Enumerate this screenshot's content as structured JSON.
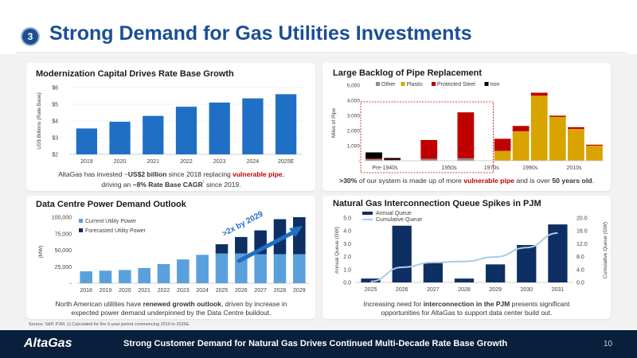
{
  "header": {
    "number": "3",
    "title": "Strong Demand for Gas Utilities Investments"
  },
  "panels": {
    "p1": {
      "title": "Modernization Capital Drives Rate Base Growth",
      "caption_a": "AltaGas has invested ~",
      "caption_b": "US$2 billion",
      "caption_c": " since 2018 replacing ",
      "caption_d": "vulnerable pipe",
      "caption_e": ",",
      "caption_f": "driving an ",
      "caption_g": "~8% Rate Base CAGR",
      "caption_h": "¹",
      "caption_i": " since 2019."
    },
    "p2": {
      "title": "Large Backlog of Pipe Replacement",
      "caption_a": ">30%",
      "caption_b": " of our system is made up of more ",
      "caption_c": "vulnerable pipe",
      "caption_d": " and is over ",
      "caption_e": "50 years old",
      "caption_f": "."
    },
    "p3": {
      "title": "Data Centre Power Demand Outlook",
      "arrow_label": ">2x by 2029",
      "caption_a": "North American utilities have ",
      "caption_b": "renewed growth outlook",
      "caption_c": ", driven by increase in",
      "caption_d": "expected power demand underpinned by the Data Centre buildout."
    },
    "p4": {
      "title": "Natural Gas Interconnection Queue Spikes in PJM",
      "caption_a": "Increasing need for ",
      "caption_b": "interconnection in the PJM",
      "caption_c": " presents significant",
      "caption_d": "opportunities for AltaGas to support data center build out."
    }
  },
  "source": "Source: S&P, PJM; 1) Calculated for the 6-year period commencing 2019 to 2025E.",
  "footer": {
    "logo": "AltaGas",
    "text": "Strong Customer Demand for Natural Gas Drives Continued Multi-Decade Rate Base Growth",
    "page": "10"
  },
  "colors": {
    "blue": "#1f6fc5",
    "navy": "#0d2f63",
    "light_blue": "#5aa0dc",
    "gold": "#d9a300",
    "red": "#c00000",
    "gray": "#8c8c8c",
    "black": "#000000",
    "cum_line": "#a9cbe8"
  },
  "chart_data": [
    {
      "type": "bar",
      "id": "rate_base",
      "categories": [
        "2019",
        "2020",
        "2021",
        "2022",
        "2023",
        "2024",
        "2025E"
      ],
      "values": [
        3.55,
        3.95,
        4.3,
        4.85,
        5.1,
        5.35,
        5.6
      ],
      "ylabel": "US$ Billions (Rate Base)",
      "ylim": [
        2,
        6
      ],
      "yticks": [
        "$2",
        "$3",
        "$4",
        "$5",
        "$6"
      ]
    },
    {
      "type": "bar",
      "id": "pipe_backlog",
      "stacked": true,
      "categories": [
        "1",
        "2",
        "3",
        "4",
        "5",
        "6",
        "7",
        "8",
        "9",
        "10",
        "11",
        "12",
        "13"
      ],
      "axis_labels": [
        "Pre-1940s",
        "1950s",
        "1970s",
        "1990s",
        "2010s"
      ],
      "series": [
        {
          "name": "Other",
          "values": [
            0,
            0,
            0,
            0,
            0,
            0,
            0,
            0,
            0,
            0,
            0,
            0,
            0
          ]
        },
        {
          "name": "Plastic",
          "values": [
            0,
            0,
            0,
            0,
            0,
            0,
            0,
            650,
            1950,
            4300,
            2900,
            2100,
            1000
          ]
        },
        {
          "name": "Protected Steel",
          "values": [
            50,
            30,
            0,
            1250,
            0,
            3050,
            0,
            800,
            350,
            200,
            80,
            120,
            60
          ]
        },
        {
          "name": "Iron",
          "values": [
            400,
            100,
            0,
            0,
            0,
            0,
            0,
            0,
            0,
            0,
            0,
            0,
            0
          ]
        }
      ],
      "gray_base": [
        100,
        50,
        0,
        120,
        0,
        150,
        0,
        0,
        0,
        0,
        0,
        0,
        0
      ],
      "ylabel": "Miles of Pipe",
      "ylim": [
        0,
        5000
      ],
      "yticks": [
        "-",
        "1,000",
        "2,000",
        "3,000",
        "4,000",
        "5,000"
      ],
      "legend": "top"
    },
    {
      "type": "bar",
      "id": "power_demand",
      "stacked": true,
      "categories": [
        "2018",
        "2019",
        "2020",
        "2021",
        "2022",
        "2023",
        "2024",
        "2025",
        "2026",
        "2027",
        "2028",
        "2029"
      ],
      "series": [
        {
          "name": "Current Utility Power",
          "values": [
            18000,
            19000,
            20000,
            23000,
            29000,
            36000,
            43000,
            45000,
            45000,
            44000,
            44000,
            44000
          ]
        },
        {
          "name": "Forecasted Utility Power",
          "values": [
            0,
            0,
            0,
            0,
            0,
            0,
            0,
            14000,
            25000,
            36000,
            53000,
            56000
          ]
        }
      ],
      "ylabel": "(MW)",
      "ylim": [
        0,
        100000
      ],
      "yticks": [
        "-",
        "25,000",
        "50,000",
        "75,000",
        "100,000"
      ],
      "legend": "top-left"
    },
    {
      "type": "bar",
      "id": "pjm_queue",
      "categories": [
        "2025",
        "2026",
        "2027",
        "2028",
        "2029",
        "2030",
        "2031"
      ],
      "series": [
        {
          "name": "Annual Queue",
          "values": [
            0.3,
            4.4,
            1.5,
            0.3,
            1.4,
            2.9,
            4.5
          ],
          "axis": "left"
        },
        {
          "name": "Cumulative Queue",
          "type": "line",
          "values": [
            0.3,
            4.7,
            6.2,
            6.5,
            7.9,
            10.8,
            15.3
          ],
          "axis": "right"
        }
      ],
      "ylabel": "Annual Queue (GW)",
      "y2label": "Cumulative Queue (GW)",
      "ylim": [
        0,
        5
      ],
      "y2lim": [
        0,
        20
      ],
      "yticks": [
        "0.0",
        "1.0",
        "2.0",
        "3.0",
        "4.0",
        "5.0"
      ],
      "y2ticks": [
        "0.0",
        "4.0",
        "8.0",
        "12.0",
        "16.0",
        "20.0"
      ],
      "legend": "top-left"
    }
  ]
}
